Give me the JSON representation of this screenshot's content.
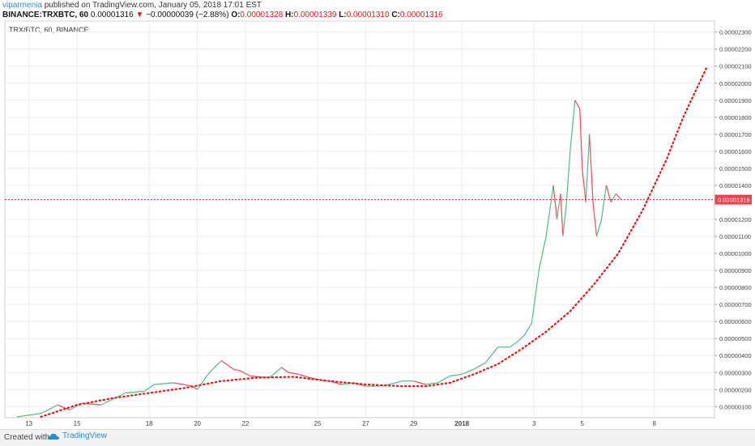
{
  "header": {
    "author": "viparmenia",
    "published": "published on TradingView.com, January 05, 2018 17:01 EST",
    "symbol": "BINANCE:TRXBTC, 60",
    "last": "0.00001316",
    "down_arrow": "▼",
    "change": "−0.00000039 (−2.88%)",
    "o_label": "O:",
    "o_value": "0.00001328",
    "h_label": "H:",
    "h_value": "0.00001339",
    "l_label": "L:",
    "l_value": "0.00001310",
    "c_label": "C:",
    "c_value": "0.00001316"
  },
  "chart_data": {
    "type": "line",
    "title": "TRX/BTC, 60, BINANCE",
    "price_label": "0.00001316",
    "current_price": 1.316e-05,
    "y_ticks": [
      "0.00000100",
      "0.00000200",
      "0.00000300",
      "0.00000400",
      "0.00000500",
      "0.00000600",
      "0.00000700",
      "0.00000800",
      "0.00000900",
      "0.00001000",
      "0.00001100",
      "0.00001200",
      "0.00001400",
      "0.00001500",
      "0.00001600",
      "0.00001700",
      "0.00001800",
      "0.00001900",
      "0.00002000",
      "0.00002100",
      "0.00002200",
      "0.00002300"
    ],
    "y_tick_values": [
      1e-06,
      2e-06,
      3e-06,
      4e-06,
      5e-06,
      6e-06,
      7e-06,
      8e-06,
      9e-06,
      1e-05,
      1.1e-05,
      1.2e-05,
      1.4e-05,
      1.5e-05,
      1.6e-05,
      1.7e-05,
      1.8e-05,
      1.9e-05,
      2e-05,
      2.1e-05,
      2.2e-05,
      2.3e-05
    ],
    "ylim": [
      3.5e-07,
      2.365e-05
    ],
    "x_ticks": [
      "13",
      "15",
      "18",
      "20",
      "22",
      "25",
      "27",
      "29",
      "2018",
      "3",
      "5",
      "8"
    ],
    "x_tick_days": [
      1,
      3,
      6,
      8,
      10,
      13,
      15,
      17,
      19,
      22,
      24,
      27
    ],
    "xlim": [
      0,
      29.5
    ],
    "x_unit": "days from Dec 12, 2017",
    "grid": true,
    "series": [
      {
        "name": "price",
        "color_up": "#53b987",
        "color_down": "#eb4d5c",
        "x": [
          0.5,
          1.5,
          2.2,
          2.7,
          3.2,
          4,
          5,
          5.8,
          6.2,
          7,
          7.8,
          8,
          8.5,
          9,
          9.5,
          9.8,
          10.2,
          11,
          11.5,
          11.8,
          12.2,
          12.7,
          13,
          13.5,
          14,
          14.5,
          15,
          15.5,
          16,
          16.5,
          17,
          17.5,
          18,
          18.5,
          19,
          19.5,
          20,
          20.5,
          21,
          21.3,
          21.6,
          21.9,
          22.2,
          22.5,
          22.8,
          22.95,
          23.1,
          23.2,
          23.35,
          23.5,
          23.7,
          23.9,
          24,
          24.15,
          24.3,
          24.45,
          24.6,
          24.8,
          25.0,
          25.2,
          25.4,
          25.6
        ],
        "y": [
          4e-07,
          6e-07,
          1.1e-06,
          8e-07,
          1.2e-06,
          1.1e-06,
          1.8e-06,
          1.9e-06,
          2.3e-06,
          2.4e-06,
          2.2e-06,
          2e-06,
          3e-06,
          3.7e-06,
          3.2e-06,
          3.1e-06,
          2.8e-06,
          2.7e-06,
          3.3e-06,
          3e-06,
          2.9e-06,
          2.7e-06,
          2.6e-06,
          2.5e-06,
          2.3e-06,
          2.4e-06,
          2.2e-06,
          2.2e-06,
          2.3e-06,
          2.5e-06,
          2.5e-06,
          2.3e-06,
          2.4e-06,
          2.8e-06,
          2.9e-06,
          3.2e-06,
          3.6e-06,
          4.5e-06,
          4.5e-06,
          4.8e-06,
          5.2e-06,
          5.9e-06,
          9e-06,
          1.1e-05,
          1.4e-05,
          1.2e-05,
          1.35e-05,
          1.1e-05,
          1.3e-05,
          1.6e-05,
          1.9e-05,
          1.85e-05,
          1.5e-05,
          1.3e-05,
          1.7e-05,
          1.3e-05,
          1.1e-05,
          1.2e-05,
          1.4e-05,
          1.3e-05,
          1.35e-05,
          1.32e-05
        ]
      },
      {
        "name": "trend",
        "style": "dotted",
        "color": "#e0191f",
        "x": [
          1.5,
          3,
          4.5,
          6,
          7.5,
          9,
          10.5,
          12,
          13.5,
          15,
          16.5,
          17.5,
          18.5,
          19.5,
          20.5,
          21.5,
          22.5,
          23.5,
          24.5,
          25.5,
          26.5,
          27.5,
          28.2,
          29.2
        ],
        "y": [
          4e-07,
          1.1e-06,
          1.5e-06,
          1.8e-06,
          2.1e-06,
          2.5e-06,
          2.7e-06,
          2.75e-06,
          2.5e-06,
          2.3e-06,
          2.2e-06,
          2.2e-06,
          2.4e-06,
          2.9e-06,
          3.5e-06,
          4.4e-06,
          5.4e-06,
          6.6e-06,
          8.2e-06,
          1e-05,
          1.25e-05,
          1.55e-05,
          1.8e-05,
          2.1e-05
        ]
      }
    ]
  },
  "footer": {
    "created_with": "Created with",
    "brand": "TradingView"
  }
}
